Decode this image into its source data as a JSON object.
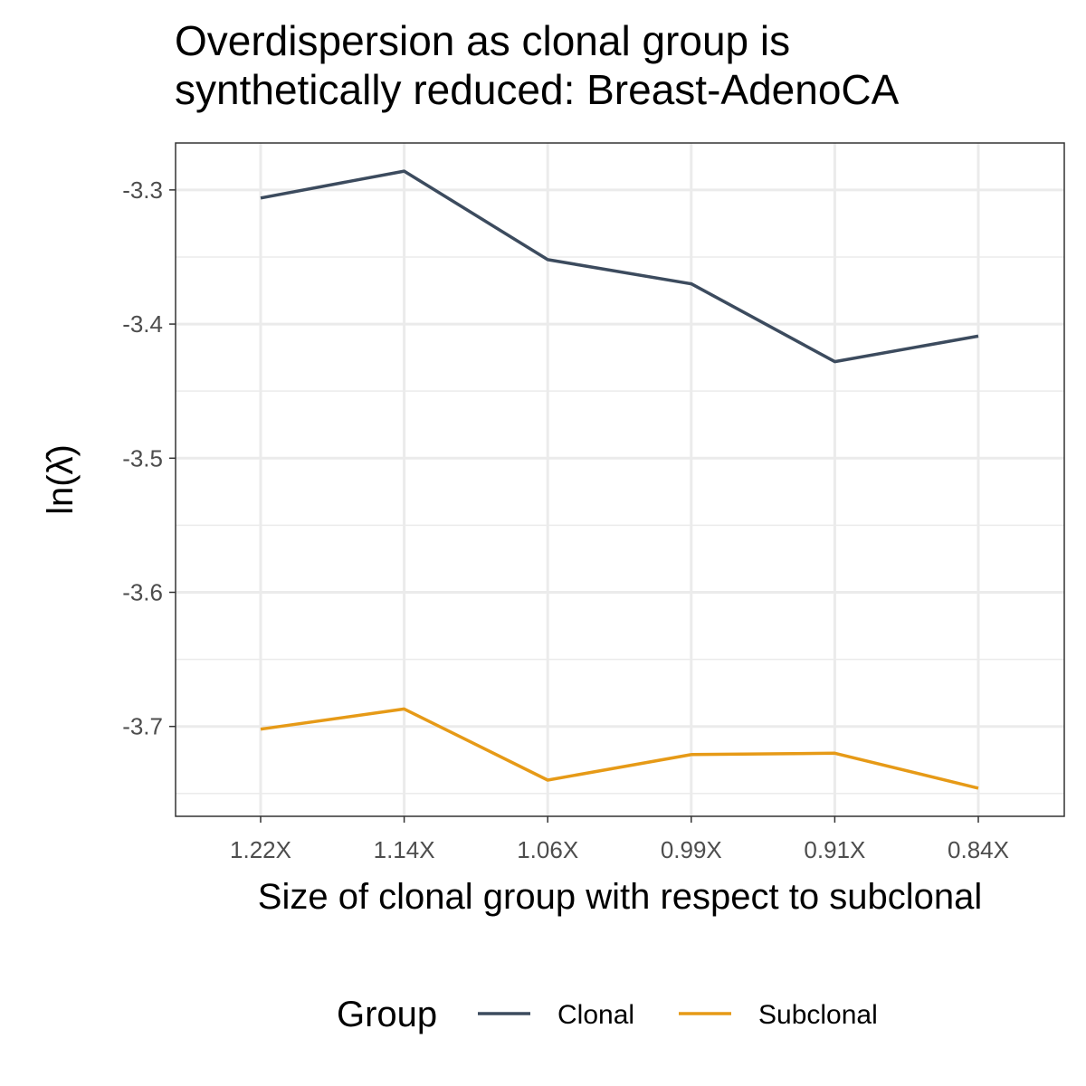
{
  "chart_data": {
    "type": "line",
    "title_lines": [
      "Overdispersion as clonal group is",
      "synthetically reduced: Breast-AdenoCA"
    ],
    "xlabel": "Size of clonal group with respect to subclonal",
    "ylabel_text": "ln(λ̂)",
    "categories": [
      "1.22X",
      "1.14X",
      "1.06X",
      "0.99X",
      "0.91X",
      "0.84X"
    ],
    "y_ticks": [
      -3.3,
      -3.4,
      -3.5,
      -3.6,
      -3.7
    ],
    "y_tick_labels": [
      "-3.3",
      "-3.4",
      "-3.5",
      "-3.6",
      "-3.7"
    ],
    "ylim": [
      -3.767,
      -3.265
    ],
    "grid": true,
    "legend": {
      "title": "Group",
      "placement": "bottom"
    },
    "series": [
      {
        "name": "Clonal",
        "color": "#3c4b5e",
        "values": [
          -3.306,
          -3.286,
          -3.352,
          -3.37,
          -3.428,
          -3.409
        ]
      },
      {
        "name": "Subclonal",
        "color": "#e69a17",
        "values": [
          -3.702,
          -3.687,
          -3.74,
          -3.721,
          -3.72,
          -3.746
        ]
      }
    ]
  }
}
